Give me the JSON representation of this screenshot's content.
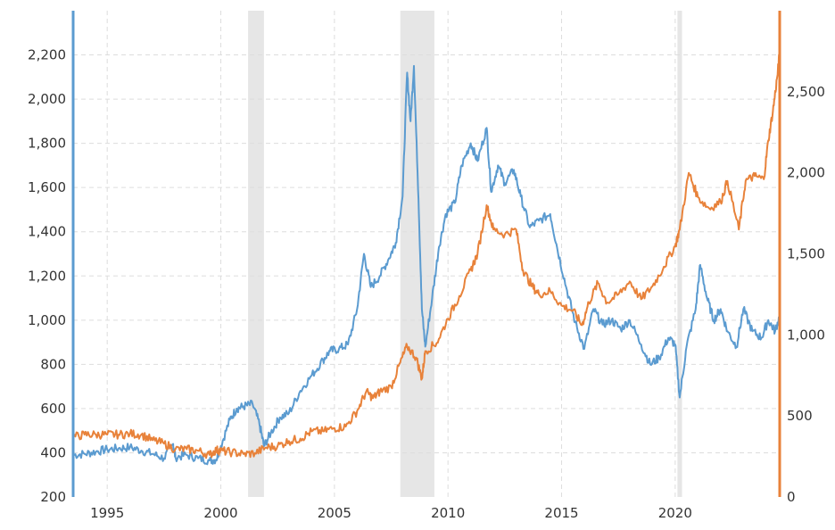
{
  "chart_data": {
    "type": "line",
    "title": "",
    "xlabel": "",
    "ylabel_left": "",
    "ylabel_right": "",
    "xlim": [
      1993.5,
      2024.6
    ],
    "ylim_left": [
      200,
      2400
    ],
    "ylim_right": [
      0,
      3000
    ],
    "x_ticks": [
      {
        "value": 1995,
        "label": "1995"
      },
      {
        "value": 2000,
        "label": "2000"
      },
      {
        "value": 2005,
        "label": "2005"
      },
      {
        "value": 2010,
        "label": "2010"
      },
      {
        "value": 2015,
        "label": "2015"
      },
      {
        "value": 2020,
        "label": "2020"
      }
    ],
    "y_ticks_left": [
      {
        "value": 200,
        "label": "200"
      },
      {
        "value": 400,
        "label": "400"
      },
      {
        "value": 600,
        "label": "600"
      },
      {
        "value": 800,
        "label": "800"
      },
      {
        "value": 1000,
        "label": "1,000"
      },
      {
        "value": 1200,
        "label": "1,200"
      },
      {
        "value": 1400,
        "label": "1,400"
      },
      {
        "value": 1600,
        "label": "1,600"
      },
      {
        "value": 1800,
        "label": "1,800"
      },
      {
        "value": 2000,
        "label": "2,000"
      },
      {
        "value": 2200,
        "label": "2,200"
      }
    ],
    "y_ticks_right": [
      {
        "value": 0,
        "label": "0"
      },
      {
        "value": 500,
        "label": "500"
      },
      {
        "value": 1000,
        "label": "1,000"
      },
      {
        "value": 1500,
        "label": "1,500"
      },
      {
        "value": 2000,
        "label": "2,000"
      },
      {
        "value": 2500,
        "label": "2,500"
      }
    ],
    "grid": true,
    "recession_bands": [
      {
        "start": 2001.2,
        "end": 2001.9
      },
      {
        "start": 2007.9,
        "end": 2009.4
      },
      {
        "start": 2020.1,
        "end": 2020.3
      }
    ],
    "series": [
      {
        "axis": "left",
        "color": "#5b9bd0",
        "points": [
          [
            1993.5,
            390
          ],
          [
            1994.0,
            395
          ],
          [
            1994.5,
            405
          ],
          [
            1995.0,
            415
          ],
          [
            1995.5,
            420
          ],
          [
            1996.0,
            425
          ],
          [
            1996.5,
            410
          ],
          [
            1997.0,
            395
          ],
          [
            1997.5,
            375
          ],
          [
            1997.9,
            440
          ],
          [
            1998.0,
            380
          ],
          [
            1998.5,
            390
          ],
          [
            1999.0,
            375
          ],
          [
            1999.5,
            365
          ],
          [
            1999.8,
            370
          ],
          [
            2000.0,
            430
          ],
          [
            2000.4,
            550
          ],
          [
            2000.7,
            600
          ],
          [
            2001.0,
            610
          ],
          [
            2001.4,
            620
          ],
          [
            2001.7,
            530
          ],
          [
            2001.9,
            430
          ],
          [
            2002.2,
            490
          ],
          [
            2002.6,
            560
          ],
          [
            2003.0,
            580
          ],
          [
            2003.5,
            680
          ],
          [
            2004.0,
            750
          ],
          [
            2004.5,
            820
          ],
          [
            2004.8,
            860
          ],
          [
            2005.2,
            870
          ],
          [
            2005.6,
            890
          ],
          [
            2006.0,
            1050
          ],
          [
            2006.3,
            1300
          ],
          [
            2006.6,
            1150
          ],
          [
            2007.0,
            1200
          ],
          [
            2007.4,
            1280
          ],
          [
            2007.7,
            1350
          ],
          [
            2008.0,
            1560
          ],
          [
            2008.2,
            2120
          ],
          [
            2008.35,
            1900
          ],
          [
            2008.5,
            2150
          ],
          [
            2008.7,
            1550
          ],
          [
            2008.85,
            1050
          ],
          [
            2009.0,
            880
          ],
          [
            2009.3,
            1100
          ],
          [
            2009.6,
            1330
          ],
          [
            2009.9,
            1480
          ],
          [
            2010.3,
            1530
          ],
          [
            2010.6,
            1700
          ],
          [
            2011.0,
            1800
          ],
          [
            2011.3,
            1720
          ],
          [
            2011.7,
            1870
          ],
          [
            2011.9,
            1580
          ],
          [
            2012.2,
            1700
          ],
          [
            2012.5,
            1620
          ],
          [
            2012.9,
            1680
          ],
          [
            2013.2,
            1560
          ],
          [
            2013.6,
            1420
          ],
          [
            2014.0,
            1450
          ],
          [
            2014.5,
            1480
          ],
          [
            2014.8,
            1330
          ],
          [
            2015.2,
            1150
          ],
          [
            2015.6,
            990
          ],
          [
            2016.0,
            870
          ],
          [
            2016.4,
            1050
          ],
          [
            2016.8,
            980
          ],
          [
            2017.2,
            1000
          ],
          [
            2017.6,
            960
          ],
          [
            2018.0,
            1000
          ],
          [
            2018.5,
            890
          ],
          [
            2018.9,
            800
          ],
          [
            2019.3,
            830
          ],
          [
            2019.7,
            920
          ],
          [
            2020.0,
            890
          ],
          [
            2020.2,
            650
          ],
          [
            2020.5,
            880
          ],
          [
            2020.9,
            1050
          ],
          [
            2021.1,
            1250
          ],
          [
            2021.4,
            1100
          ],
          [
            2021.7,
            1000
          ],
          [
            2022.0,
            1050
          ],
          [
            2022.3,
            950
          ],
          [
            2022.7,
            880
          ],
          [
            2023.0,
            1050
          ],
          [
            2023.4,
            950
          ],
          [
            2023.8,
            920
          ],
          [
            2024.1,
            1000
          ],
          [
            2024.4,
            950
          ],
          [
            2024.6,
            1020
          ]
        ]
      },
      {
        "axis": "right",
        "color": "#e8823a",
        "points": [
          [
            1993.5,
            370
          ],
          [
            1994.0,
            385
          ],
          [
            1994.5,
            385
          ],
          [
            1995.0,
            385
          ],
          [
            1995.5,
            385
          ],
          [
            1996.0,
            390
          ],
          [
            1996.5,
            385
          ],
          [
            1997.0,
            350
          ],
          [
            1997.5,
            330
          ],
          [
            1998.0,
            295
          ],
          [
            1998.5,
            295
          ],
          [
            1999.0,
            285
          ],
          [
            1999.5,
            260
          ],
          [
            1999.8,
            290
          ],
          [
            2000.0,
            285
          ],
          [
            2000.5,
            275
          ],
          [
            2001.0,
            265
          ],
          [
            2001.5,
            270
          ],
          [
            2002.0,
            305
          ],
          [
            2002.5,
            315
          ],
          [
            2003.0,
            345
          ],
          [
            2003.5,
            360
          ],
          [
            2004.0,
            405
          ],
          [
            2004.5,
            405
          ],
          [
            2005.0,
            425
          ],
          [
            2005.5,
            435
          ],
          [
            2006.0,
            530
          ],
          [
            2006.4,
            650
          ],
          [
            2006.7,
            610
          ],
          [
            2007.0,
            650
          ],
          [
            2007.5,
            680
          ],
          [
            2007.9,
            830
          ],
          [
            2008.2,
            930
          ],
          [
            2008.6,
            860
          ],
          [
            2008.85,
            730
          ],
          [
            2009.0,
            900
          ],
          [
            2009.5,
            950
          ],
          [
            2010.0,
            1100
          ],
          [
            2010.5,
            1240
          ],
          [
            2011.0,
            1400
          ],
          [
            2011.3,
            1500
          ],
          [
            2011.7,
            1800
          ],
          [
            2012.0,
            1650
          ],
          [
            2012.5,
            1620
          ],
          [
            2013.0,
            1650
          ],
          [
            2013.3,
            1400
          ],
          [
            2013.7,
            1300
          ],
          [
            2014.0,
            1250
          ],
          [
            2014.5,
            1270
          ],
          [
            2015.0,
            1180
          ],
          [
            2015.5,
            1150
          ],
          [
            2015.9,
            1060
          ],
          [
            2016.2,
            1200
          ],
          [
            2016.6,
            1320
          ],
          [
            2017.0,
            1200
          ],
          [
            2017.5,
            1250
          ],
          [
            2018.0,
            1330
          ],
          [
            2018.5,
            1220
          ],
          [
            2019.0,
            1300
          ],
          [
            2019.5,
            1420
          ],
          [
            2020.0,
            1550
          ],
          [
            2020.2,
            1650
          ],
          [
            2020.6,
            2000
          ],
          [
            2021.0,
            1850
          ],
          [
            2021.5,
            1780
          ],
          [
            2022.0,
            1820
          ],
          [
            2022.3,
            1950
          ],
          [
            2022.8,
            1650
          ],
          [
            2023.1,
            1950
          ],
          [
            2023.5,
            1980
          ],
          [
            2023.9,
            1960
          ],
          [
            2024.1,
            2200
          ],
          [
            2024.3,
            2380
          ],
          [
            2024.5,
            2600
          ],
          [
            2024.6,
            2750
          ]
        ]
      }
    ]
  }
}
